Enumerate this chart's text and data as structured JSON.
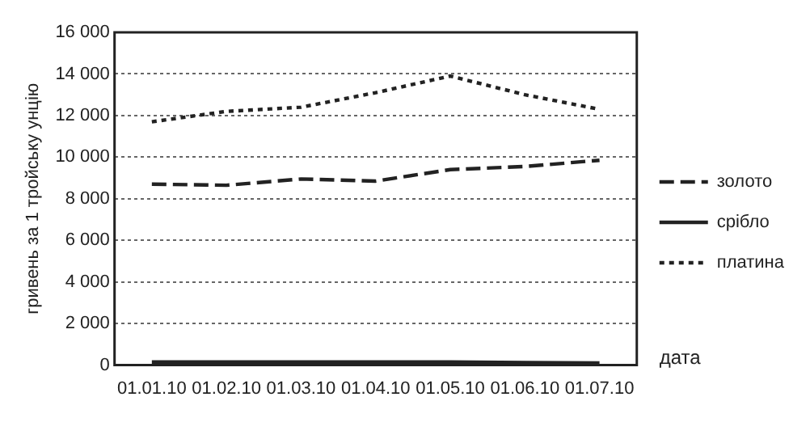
{
  "chart_data": {
    "type": "line",
    "xlabel": "дата",
    "ylabel": "гривень за 1 тройську унцію",
    "categories": [
      "01.01.10",
      "01.02.10",
      "01.03.10",
      "01.04.10",
      "01.05.10",
      "01.06.10",
      "01.07.10"
    ],
    "series": [
      {
        "name": "золото",
        "color": "#222222",
        "line_style": "dashed",
        "values": [
          8700,
          8650,
          8950,
          8850,
          9400,
          9550,
          9850
        ]
      },
      {
        "name": "срібло",
        "color": "#222222",
        "line_style": "solid",
        "values": [
          150,
          150,
          150,
          150,
          150,
          120,
          100
        ]
      },
      {
        "name": "платина",
        "color": "#222222",
        "line_style": "dotted",
        "values": [
          11700,
          12200,
          12400,
          13100,
          13900,
          13000,
          12300
        ]
      }
    ],
    "ylim": [
      0,
      16000
    ],
    "yticks": [
      {
        "value": 0,
        "label": "0"
      },
      {
        "value": 2000,
        "label": "2 000"
      },
      {
        "value": 4000,
        "label": "4 000"
      },
      {
        "value": 6000,
        "label": "6 000"
      },
      {
        "value": 8000,
        "label": "8 000"
      },
      {
        "value": 10000,
        "label": "10 000"
      },
      {
        "value": 12000,
        "label": "12 000"
      },
      {
        "value": 14000,
        "label": "14 000"
      },
      {
        "value": 16000,
        "label": "16 000"
      }
    ],
    "grid": "y",
    "legend": "right",
    "marker": "none"
  }
}
